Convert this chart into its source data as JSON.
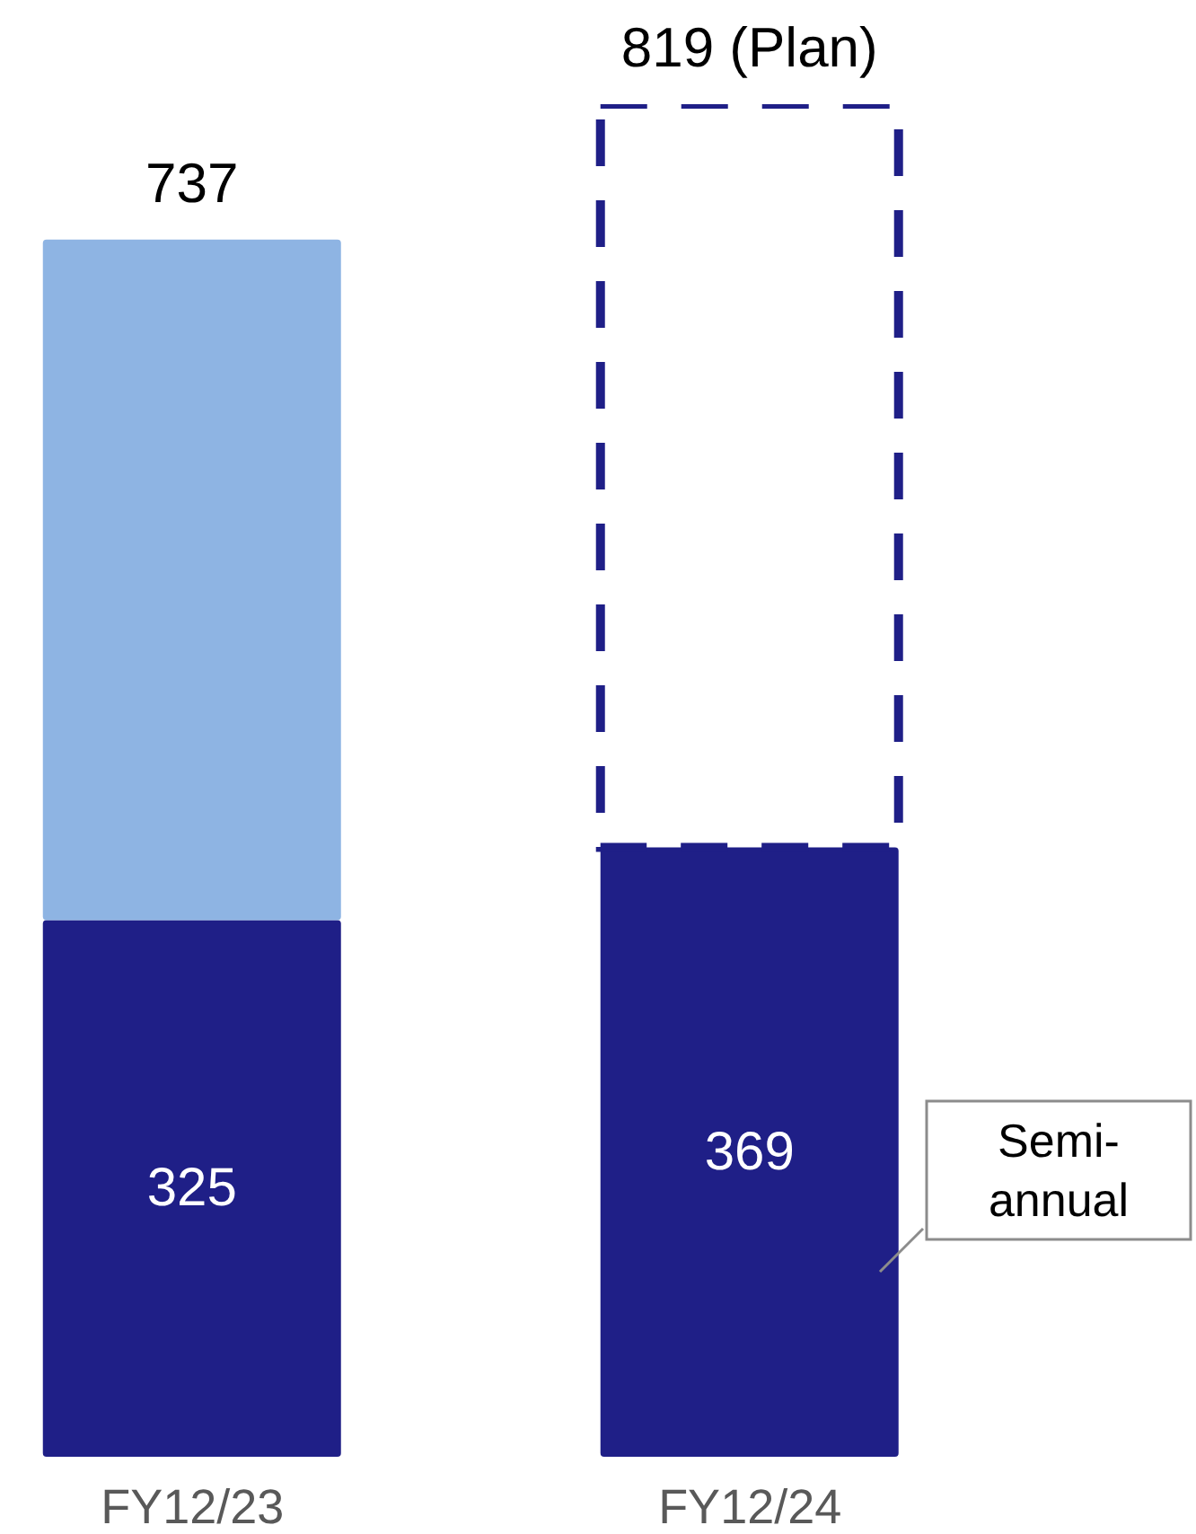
{
  "chart_data": {
    "type": "bar",
    "categories": [
      "FY12/23",
      "FY12/24"
    ],
    "stacked": true,
    "series": [
      {
        "color": "#1f1f87",
        "values": [
          325,
          369
        ],
        "value_labels": [
          "325",
          "369"
        ]
      },
      {
        "color": "#8eb4e3",
        "values": [
          412,
          null
        ]
      },
      {
        "color": "#1f1f87",
        "values": [
          null,
          450
        ],
        "line_style": "dashed"
      }
    ],
    "totals": [
      "737",
      "819 (Plan)"
    ],
    "annotations": [
      "Semi-annual"
    ]
  }
}
